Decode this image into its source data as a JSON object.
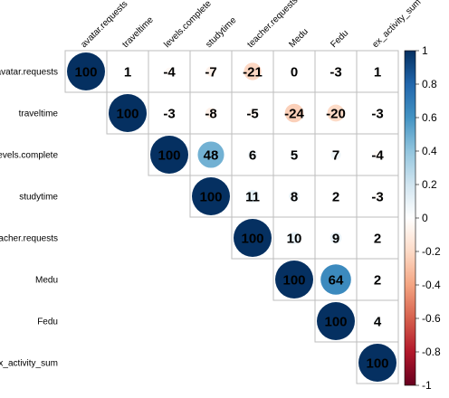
{
  "chart_data": {
    "type": "heatmap",
    "variables": [
      "avatar.requests",
      "traveltime",
      "levels.complete",
      "studytime",
      "teacher.requests",
      "Medu",
      "Fedu",
      "ex_activity_sum"
    ],
    "layout": "upper-triangle",
    "method": "circle",
    "values": [
      [
        100,
        1,
        -4,
        -7,
        -21,
        0,
        -3,
        1
      ],
      [
        null,
        100,
        -3,
        -8,
        -5,
        -24,
        -20,
        -3
      ],
      [
        null,
        null,
        100,
        48,
        6,
        5,
        7,
        -4
      ],
      [
        null,
        null,
        null,
        100,
        11,
        8,
        2,
        -3
      ],
      [
        null,
        null,
        null,
        null,
        100,
        10,
        9,
        2
      ],
      [
        null,
        null,
        null,
        null,
        null,
        100,
        64,
        2
      ],
      [
        null,
        null,
        null,
        null,
        null,
        null,
        100,
        4
      ],
      [
        null,
        null,
        null,
        null,
        null,
        null,
        null,
        100
      ]
    ],
    "colorbar": {
      "range": [
        -1,
        1
      ],
      "ticks": [
        "1",
        "0.8",
        "0.6",
        "0.4",
        "0.2",
        "0",
        "-0.2",
        "-0.4",
        "-0.6",
        "-0.8",
        "-1"
      ]
    }
  }
}
